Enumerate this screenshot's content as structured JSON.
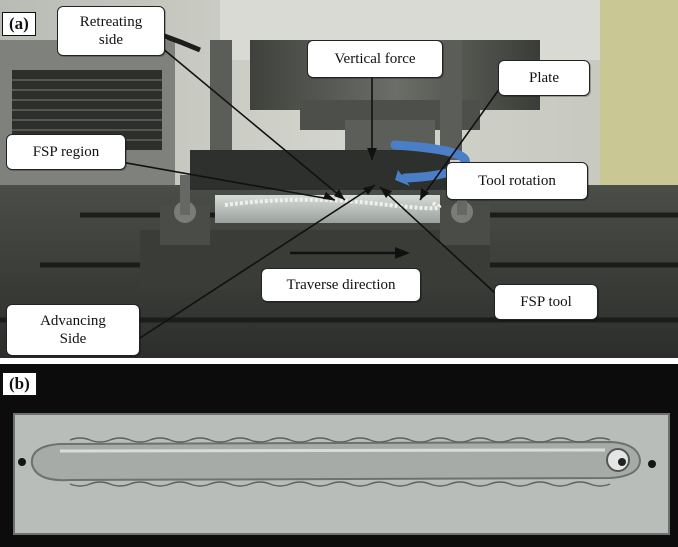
{
  "figure": {
    "panel_a": {
      "tag": "(a)",
      "labels": {
        "retreating_side": "Retreating side",
        "vertical_force": "Vertical force",
        "plate": "Plate",
        "fsp_region": "FSP region",
        "tool_rotation": "Tool rotation",
        "traverse_direction": "Traverse direction",
        "fsp_tool": "FSP tool",
        "advancing_side": "Advancing Side"
      }
    },
    "panel_b": {
      "tag": "(b)"
    }
  },
  "colors": {
    "rotation_arrow": "#4a7fc8",
    "wall": "#c9cbc2",
    "machine": "#3a3d38",
    "plate": "#b8bdb9"
  }
}
